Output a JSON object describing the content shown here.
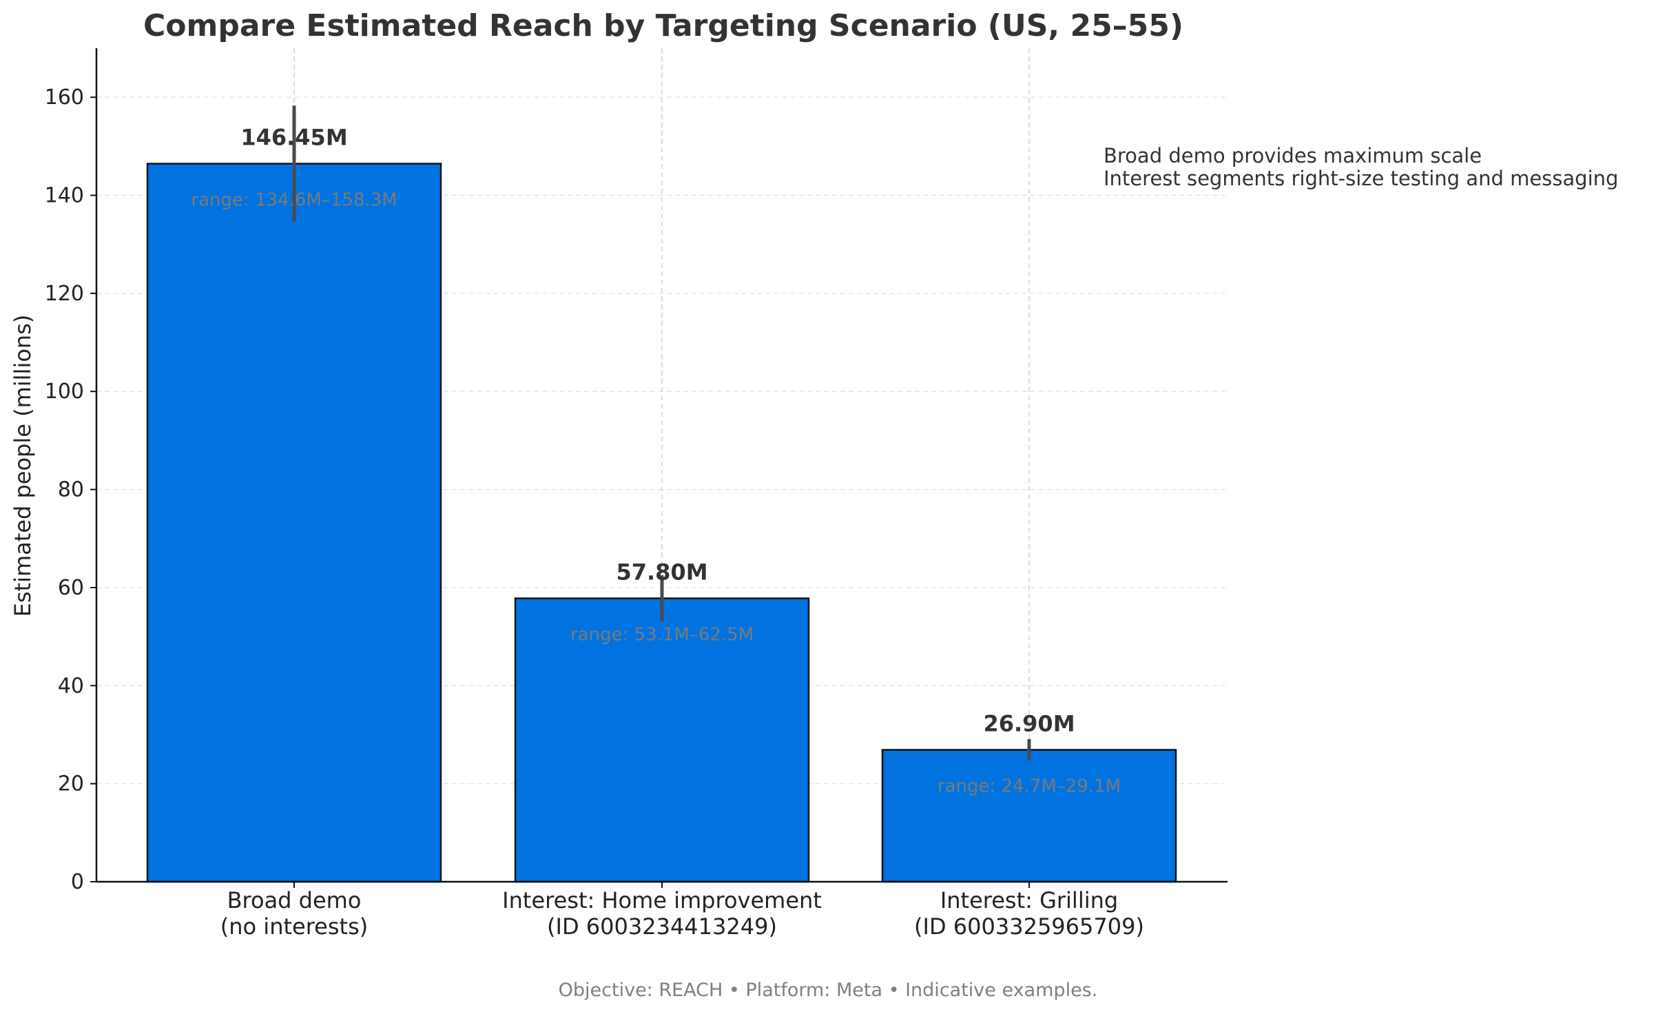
{
  "chart_data": {
    "type": "bar",
    "title": "Compare Estimated Reach by Targeting Scenario (US, 25–55)",
    "ylabel": "Estimated people (millions)",
    "xlabel": "",
    "ylim": [
      0,
      170
    ],
    "yticks": [
      0,
      20,
      40,
      60,
      80,
      100,
      120,
      140,
      160
    ],
    "categories": [
      [
        "Broad demo",
        "(no interests)"
      ],
      [
        "Interest: Home improvement",
        "(ID 6003234413249)"
      ],
      [
        "Interest: Grilling",
        "(ID 6003325965709)"
      ]
    ],
    "values": [
      146.45,
      57.8,
      26.9
    ],
    "ranges": [
      [
        134.6,
        158.3
      ],
      [
        53.1,
        62.5
      ],
      [
        24.7,
        29.1
      ]
    ],
    "value_labels": [
      "146.45M",
      "57.80M",
      "26.90M"
    ],
    "range_labels": [
      "range: 134.6M–158.3M",
      "range: 53.1M–62.5M",
      "range: 24.7M–29.1M"
    ],
    "annotation": [
      "Broad demo provides maximum scale",
      "Interest segments right-size testing and messaging"
    ],
    "footnote": "Objective: REACH • Platform: Meta • Indicative examples.",
    "grid": "dashed, horizontal and vertical",
    "legend": "none",
    "colors": {
      "bar": "#0073e0",
      "bar_edge": "#111111",
      "error": "#4a4a4a",
      "grid": "#e6e6e6"
    }
  }
}
